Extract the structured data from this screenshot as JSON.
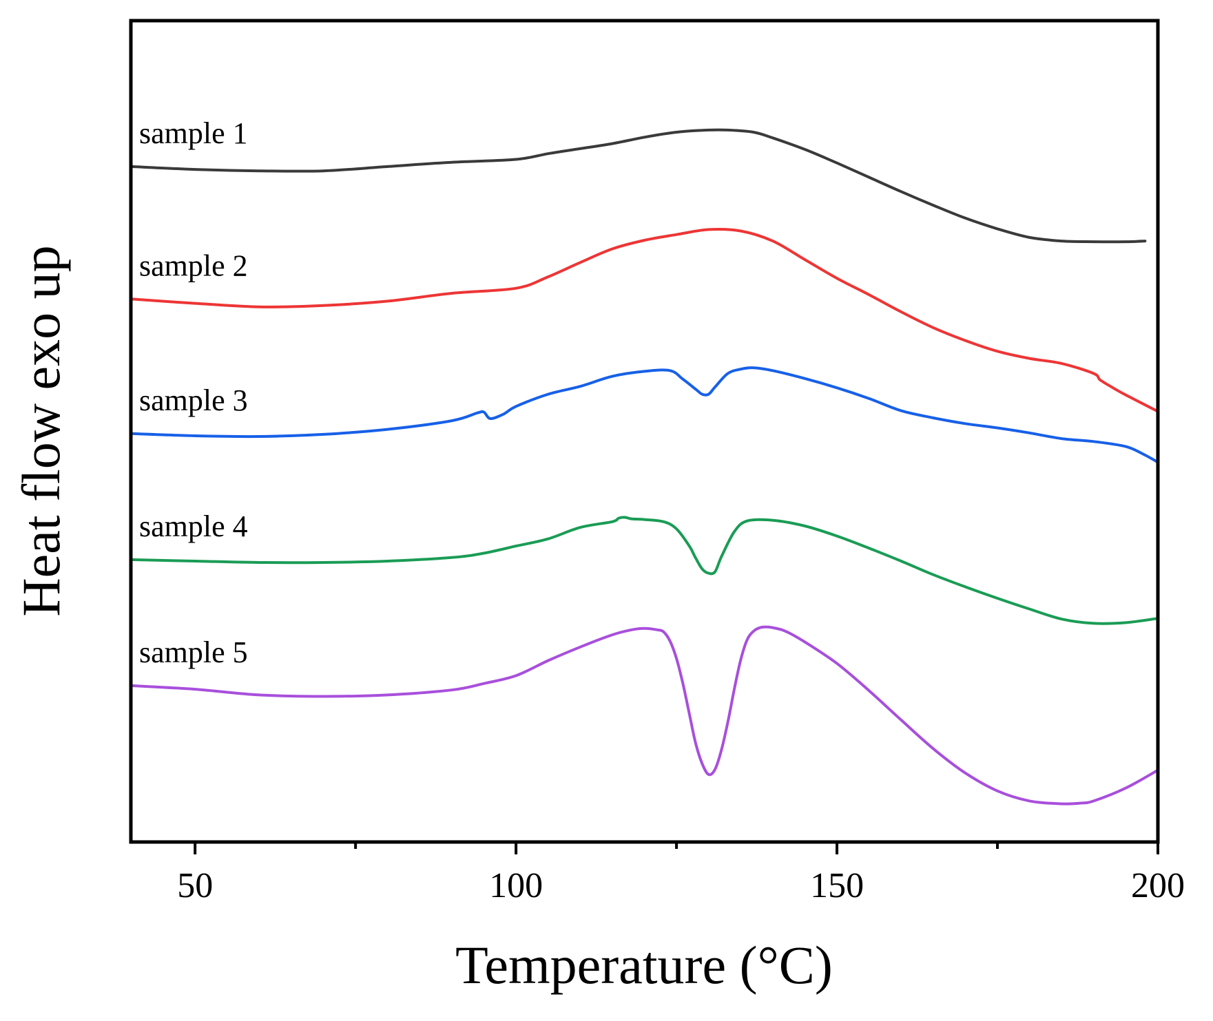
{
  "chart_data": {
    "type": "line",
    "title": "",
    "xlabel": "Temperature (°C)",
    "ylabel": "Heat flow exo up",
    "xlim": [
      40,
      200
    ],
    "ylim": [
      0,
      100
    ],
    "xticks": [
      50,
      100,
      150,
      200
    ],
    "minor_xticks": [
      75,
      125,
      175
    ],
    "yticks": [],
    "grid": false,
    "legend": "inline labels at left of each curve",
    "series": [
      {
        "name": "sample 1",
        "color": "#3a3a3a",
        "x": [
          40,
          50,
          60,
          70,
          80,
          90,
          100,
          105,
          110,
          115,
          120,
          125,
          130,
          133,
          137,
          140,
          145,
          150,
          155,
          160,
          165,
          170,
          175,
          180,
          185,
          190,
          195,
          198
        ],
        "y": [
          90.2,
          89.8,
          89.6,
          89.6,
          90.2,
          90.8,
          91.2,
          92.0,
          92.7,
          93.4,
          94.3,
          95.0,
          95.3,
          95.3,
          95.0,
          94.2,
          92.6,
          90.7,
          88.7,
          86.7,
          84.8,
          83.0,
          81.5,
          80.3,
          79.8,
          79.7,
          79.7,
          79.8
        ]
      },
      {
        "name": "sample 2",
        "color": "#ee3535",
        "x": [
          40,
          50,
          60,
          70,
          80,
          90,
          100,
          105,
          110,
          115,
          120,
          125,
          130,
          135,
          140,
          145,
          150,
          155,
          160,
          165,
          170,
          175,
          180,
          185,
          190,
          191,
          193,
          195,
          200
        ],
        "y": [
          71.7,
          71.1,
          70.6,
          70.8,
          71.4,
          72.5,
          73.2,
          74.8,
          76.8,
          78.7,
          79.9,
          80.7,
          81.4,
          81.2,
          79.8,
          77.2,
          74.6,
          72.3,
          69.9,
          67.7,
          65.9,
          64.4,
          63.4,
          62.7,
          61.3,
          60.4,
          59.3,
          58.3,
          56.0
        ]
      },
      {
        "name": "sample 3",
        "color": "#1760e8",
        "x": [
          40,
          50,
          60,
          70,
          80,
          90,
          94,
          95,
          96,
          98,
          100,
          105,
          110,
          115,
          120,
          124,
          126,
          128,
          129,
          130,
          131,
          133,
          135,
          137,
          140,
          145,
          150,
          155,
          160,
          165,
          170,
          175,
          180,
          185,
          190,
          195,
          198,
          200
        ],
        "y": [
          52.9,
          52.6,
          52.5,
          52.8,
          53.5,
          54.7,
          55.8,
          55.9,
          55.0,
          55.6,
          56.7,
          58.4,
          59.5,
          60.9,
          61.6,
          61.7,
          60.5,
          59.1,
          58.4,
          58.4,
          59.4,
          61.3,
          61.9,
          62.1,
          61.7,
          60.6,
          59.3,
          57.8,
          56.1,
          55.1,
          54.3,
          53.7,
          53.0,
          52.2,
          51.8,
          51.1,
          49.9,
          48.9
        ]
      },
      {
        "name": "sample 4",
        "color": "#1a9c55",
        "x": [
          40,
          50,
          60,
          70,
          80,
          90,
          95,
          100,
          105,
          110,
          115,
          116,
          117,
          118,
          120,
          123,
          125,
          127,
          128,
          129,
          130,
          131,
          132,
          134,
          136,
          140,
          145,
          150,
          155,
          160,
          165,
          170,
          175,
          180,
          185,
          190,
          195,
          200
        ],
        "y": [
          35.3,
          35.1,
          34.9,
          34.9,
          35.1,
          35.6,
          36.2,
          37.2,
          38.2,
          39.8,
          40.6,
          41.1,
          41.2,
          41.0,
          40.9,
          40.6,
          39.6,
          37.2,
          35.5,
          34.0,
          33.4,
          33.6,
          35.7,
          39.2,
          40.7,
          40.8,
          40.0,
          38.6,
          36.9,
          35.1,
          33.2,
          31.5,
          29.9,
          28.4,
          27.0,
          26.4,
          26.5,
          27.1
        ]
      },
      {
        "name": "sample 5",
        "color": "#a84fdc",
        "x": [
          40,
          50,
          60,
          70,
          80,
          90,
          95,
          100,
          105,
          110,
          115,
          118,
          120,
          122,
          123,
          124,
          125,
          126,
          127,
          128,
          129,
          130,
          131,
          132,
          133,
          134,
          135,
          136,
          137,
          138,
          139,
          140,
          142,
          145,
          150,
          155,
          160,
          165,
          170,
          175,
          180,
          185,
          188,
          190,
          195,
          200
        ],
        "y": [
          17.7,
          17.2,
          16.4,
          16.2,
          16.4,
          17.1,
          18.0,
          19.1,
          21.2,
          23.1,
          24.8,
          25.5,
          25.7,
          25.5,
          25.2,
          23.9,
          21.5,
          18.0,
          13.8,
          9.6,
          6.8,
          5.3,
          6.0,
          8.7,
          12.6,
          17.2,
          21.3,
          24.1,
          25.3,
          25.8,
          25.9,
          25.8,
          25.3,
          23.8,
          20.8,
          17.0,
          12.9,
          8.9,
          5.5,
          3.0,
          1.6,
          1.2,
          1.3,
          1.6,
          3.4,
          5.9
        ]
      }
    ]
  }
}
